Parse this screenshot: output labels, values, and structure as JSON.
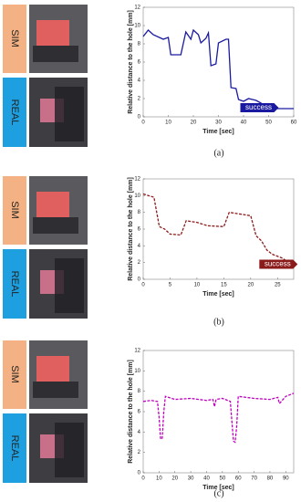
{
  "chart_data": [
    {
      "type": "line",
      "caption": "(a)",
      "sim_label": "SIM",
      "real_label": "REAL",
      "xlabel": "Time [sec]",
      "ylabel": "Relative distance to the hole [mm]",
      "annotation": "success",
      "xlim": [
        0,
        60
      ],
      "xticks": [
        0,
        10,
        20,
        30,
        40,
        50,
        60
      ],
      "ylim": [
        0,
        12
      ],
      "yticks": [
        0,
        2,
        4,
        6,
        8,
        10,
        12
      ],
      "linestyle": "solid",
      "series": [
        {
          "color": "#1a1aa0",
          "x": [
            0,
            2,
            4,
            8,
            10,
            11,
            15,
            17,
            19,
            20,
            22,
            23,
            25,
            26,
            27,
            29,
            30,
            33,
            34,
            35,
            37,
            38,
            40,
            42,
            45,
            47,
            48,
            60
          ],
          "values": [
            8.8,
            9.5,
            9,
            8.5,
            8.7,
            6.8,
            6.8,
            9.3,
            8.5,
            9.5,
            9,
            8.1,
            8.6,
            9.2,
            5.6,
            5.8,
            8.1,
            8.5,
            8.5,
            3.2,
            3.1,
            1.9,
            1.7,
            2.0,
            1.8,
            1.5,
            0.9,
            0.9
          ]
        }
      ]
    },
    {
      "type": "line",
      "caption": "(b)",
      "sim_label": "SIM",
      "real_label": "REAL",
      "xlabel": "Time [sec]",
      "ylabel": "Relative distance to the hole [mm]",
      "annotation": "success",
      "xlim": [
        0,
        28
      ],
      "xticks": [
        0,
        5,
        10,
        15,
        20,
        25
      ],
      "ylim": [
        0,
        12
      ],
      "yticks": [
        0,
        2,
        4,
        6,
        8,
        10,
        12
      ],
      "linestyle": "dashed",
      "series": [
        {
          "color": "#8b1a1a",
          "x": [
            0,
            1,
            2,
            3,
            4,
            5,
            7,
            8,
            10,
            12,
            15,
            16,
            18,
            20,
            21,
            22,
            23,
            24,
            26,
            27,
            28
          ],
          "values": [
            10.2,
            10,
            9.8,
            6.3,
            6,
            5.4,
            5.3,
            7.0,
            6.8,
            6.4,
            6.3,
            8.0,
            7.8,
            7.6,
            5.2,
            4.6,
            3.5,
            3.0,
            2.5,
            2.0,
            1.8
          ]
        }
      ]
    },
    {
      "type": "line",
      "caption": "(c)",
      "sim_label": "SIM",
      "real_label": "REAL",
      "xlabel": "Time [sec]",
      "ylabel": "Relative distance to the hole [mm]",
      "xlim": [
        0,
        95
      ],
      "xticks": [
        0,
        10,
        20,
        30,
        40,
        50,
        60,
        70,
        80,
        90
      ],
      "ylim": [
        0,
        12
      ],
      "yticks": [
        0,
        2,
        4,
        6,
        8,
        10,
        12
      ],
      "linestyle": "dashed",
      "series": [
        {
          "color": "#c000c0",
          "x": [
            0,
            5,
            9,
            10,
            11,
            12,
            13,
            14,
            20,
            30,
            40,
            44,
            45,
            46,
            50,
            55,
            56,
            57,
            58,
            59,
            60,
            70,
            80,
            85,
            86,
            90,
            95
          ],
          "values": [
            7,
            7.1,
            7,
            5.5,
            3.3,
            3.4,
            6,
            7.5,
            7.2,
            7.3,
            7.1,
            7.2,
            6.5,
            7.2,
            7.3,
            7,
            5,
            3.1,
            3,
            4.5,
            7.5,
            7.3,
            7.2,
            7.4,
            6.8,
            7.5,
            7.8
          ]
        }
      ]
    }
  ]
}
